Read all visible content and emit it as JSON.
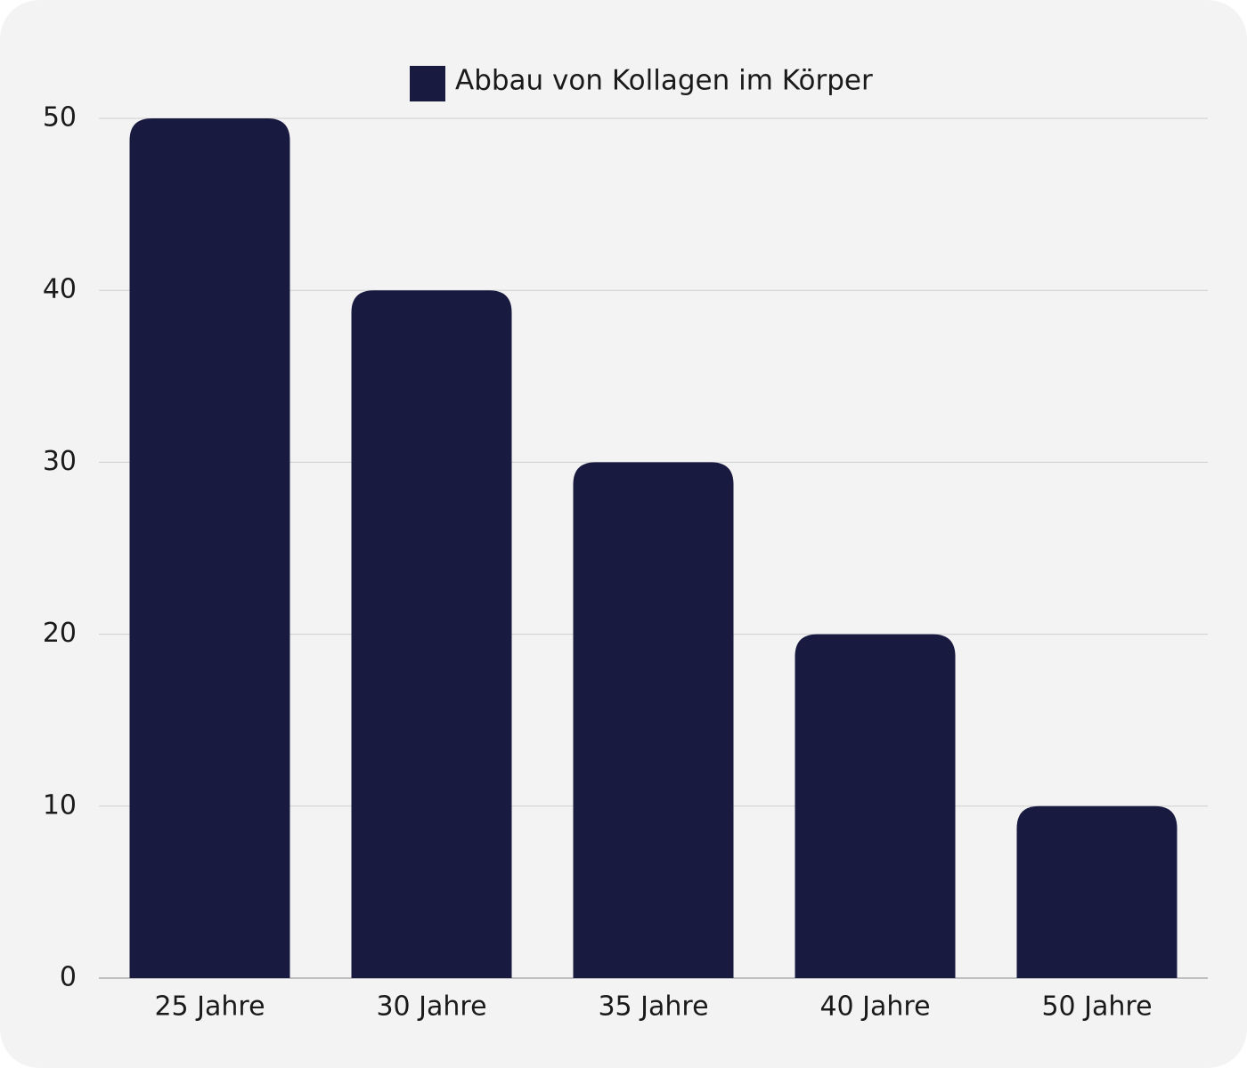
{
  "chart_data": {
    "type": "bar",
    "categories": [
      "25 Jahre",
      "30 Jahre",
      "35 Jahre",
      "40 Jahre",
      "50 Jahre"
    ],
    "series": [
      {
        "name": "Abbau von Kollagen im Körper",
        "color": "#181a40",
        "values": [
          50,
          40,
          30,
          20,
          10
        ]
      }
    ],
    "ylim": [
      0,
      50
    ],
    "yticks": [
      0,
      10,
      20,
      30,
      40,
      50
    ],
    "grid": true,
    "legend": "top"
  }
}
